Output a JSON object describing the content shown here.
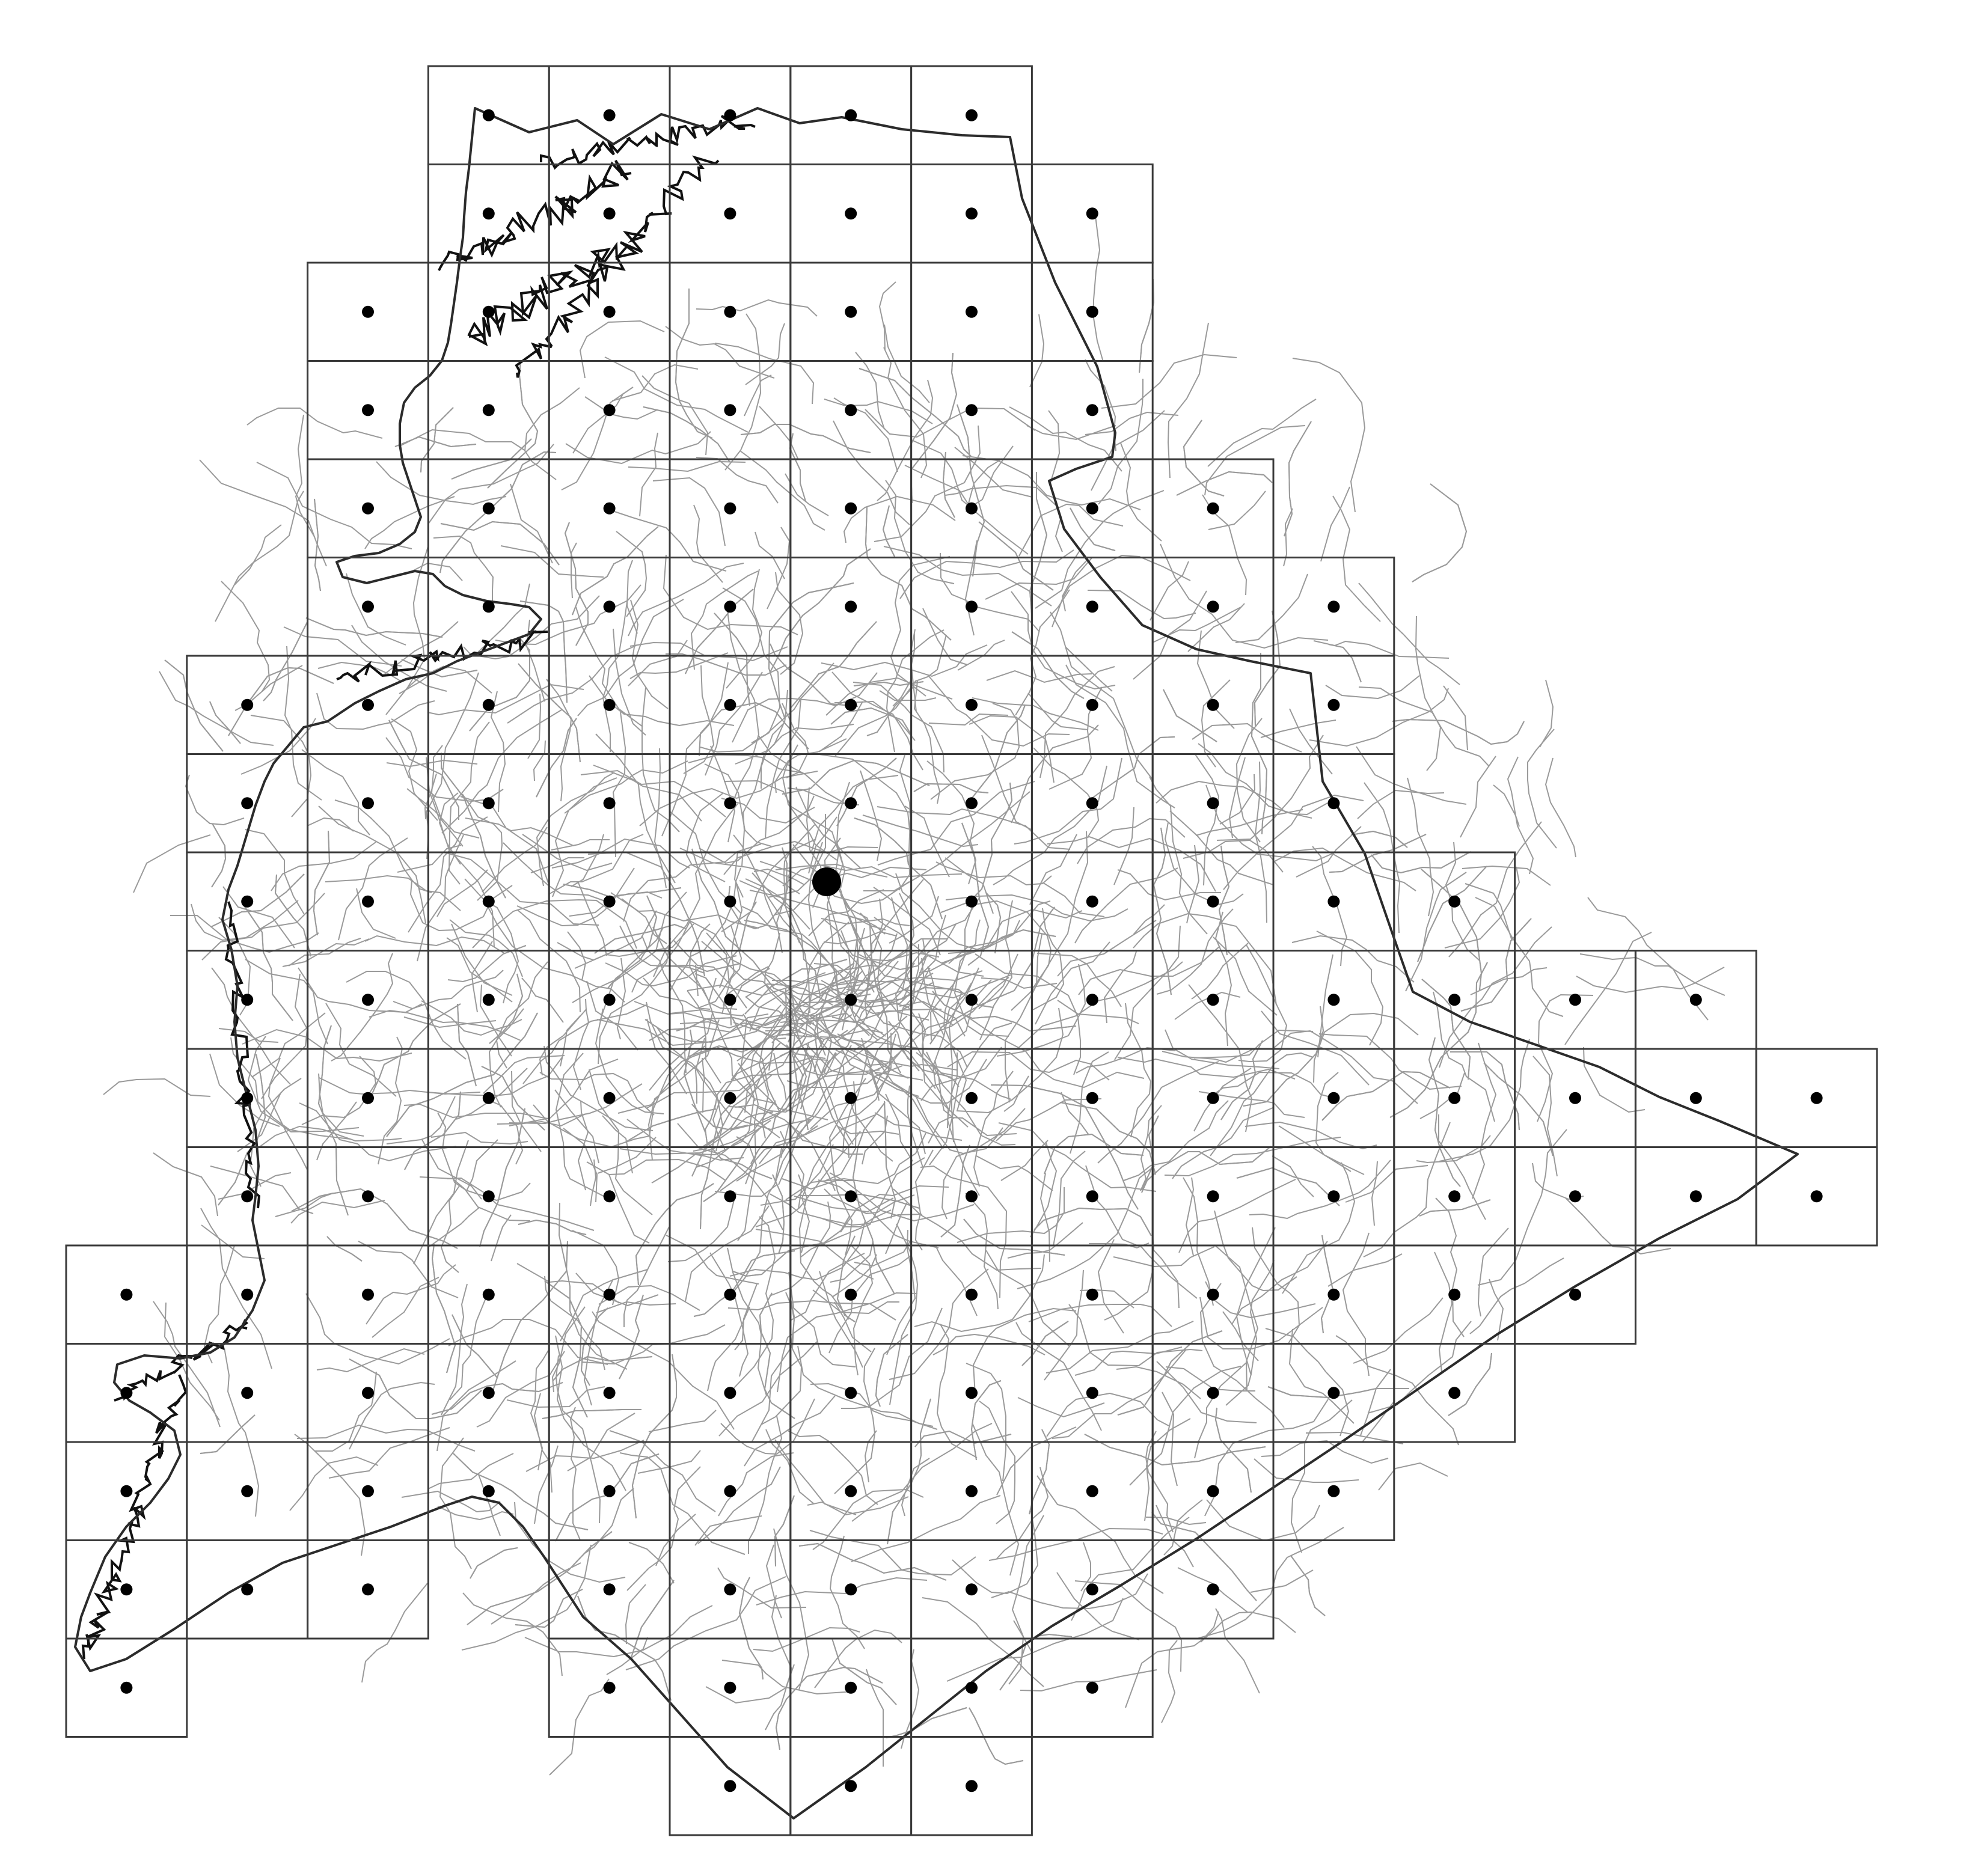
{
  "map": {
    "grid_rows": [
      {
        "row": 0,
        "cols": [
          3,
          4,
          5,
          6,
          7
        ]
      },
      {
        "row": 1,
        "cols": [
          3,
          4,
          5,
          6,
          7,
          8
        ]
      },
      {
        "row": 2,
        "cols": [
          2,
          3,
          4,
          5,
          6,
          7,
          8
        ]
      },
      {
        "row": 3,
        "cols": [
          2,
          3,
          4,
          5,
          6,
          7,
          8
        ]
      },
      {
        "row": 4,
        "cols": [
          2,
          3,
          4,
          5,
          6,
          7,
          8,
          9
        ]
      },
      {
        "row": 5,
        "cols": [
          2,
          3,
          4,
          5,
          6,
          7,
          8,
          9,
          10
        ]
      },
      {
        "row": 6,
        "cols": [
          1,
          2,
          3,
          4,
          5,
          6,
          7,
          8,
          9,
          10
        ]
      },
      {
        "row": 7,
        "cols": [
          1,
          2,
          3,
          4,
          5,
          6,
          7,
          8,
          9,
          10
        ]
      },
      {
        "row": 8,
        "cols": [
          1,
          2,
          3,
          4,
          5,
          6,
          7,
          8,
          9,
          10,
          11
        ]
      },
      {
        "row": 9,
        "cols": [
          1,
          2,
          3,
          4,
          5,
          6,
          7,
          8,
          9,
          10,
          11,
          12,
          13
        ]
      },
      {
        "row": 10,
        "cols": [
          1,
          2,
          3,
          4,
          5,
          6,
          7,
          8,
          9,
          10,
          11,
          12,
          13,
          14
        ]
      },
      {
        "row": 11,
        "cols": [
          1,
          2,
          3,
          4,
          5,
          6,
          7,
          8,
          9,
          10,
          11,
          12,
          13,
          14
        ]
      },
      {
        "row": 12,
        "cols": [
          0,
          1,
          2,
          3,
          4,
          5,
          6,
          7,
          8,
          9,
          10,
          11,
          12
        ]
      },
      {
        "row": 13,
        "cols": [
          0,
          1,
          2,
          3,
          4,
          5,
          6,
          7,
          8,
          9,
          10,
          11
        ]
      },
      {
        "row": 14,
        "cols": [
          0,
          1,
          2,
          3,
          4,
          5,
          6,
          7,
          8,
          9,
          10
        ]
      },
      {
        "row": 15,
        "cols": [
          0,
          1,
          2,
          4,
          5,
          6,
          7,
          8,
          9
        ]
      },
      {
        "row": 16,
        "cols": [
          0,
          4,
          5,
          6,
          7,
          8
        ]
      },
      {
        "row": 17,
        "cols": [
          5,
          6,
          7
        ]
      }
    ],
    "highlight_cell": {
      "row": 8,
      "col": 6
    },
    "colors": {
      "grid_line": "#3a3a3a",
      "boundary": "#2b2b2b",
      "roads": "#9a9a9a",
      "water": "#111111",
      "point": "#000000",
      "background": "#ffffff"
    }
  }
}
